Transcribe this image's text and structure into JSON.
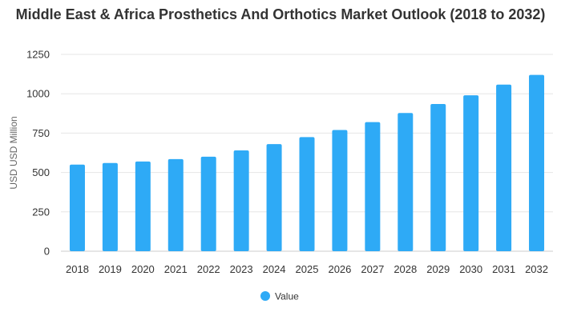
{
  "chart_data": {
    "type": "bar",
    "title": "Middle East & Africa Prosthetics And Orthotics Market Outlook (2018 to 2032)",
    "xlabel": "",
    "ylabel": "USD USD Million",
    "ylim": [
      0,
      1250
    ],
    "yticks": [
      0,
      250,
      500,
      750,
      1000,
      1250
    ],
    "grid": true,
    "legend": "bottom-center",
    "categories": [
      "2018",
      "2019",
      "2020",
      "2021",
      "2022",
      "2023",
      "2024",
      "2025",
      "2026",
      "2027",
      "2028",
      "2029",
      "2030",
      "2031",
      "2032"
    ],
    "series": [
      {
        "name": "Value",
        "color": "#2eaaf6",
        "values": [
          550,
          560,
          570,
          585,
          600,
          640,
          680,
          725,
          770,
          820,
          878,
          935,
          990,
          1058,
          1120
        ]
      }
    ]
  }
}
